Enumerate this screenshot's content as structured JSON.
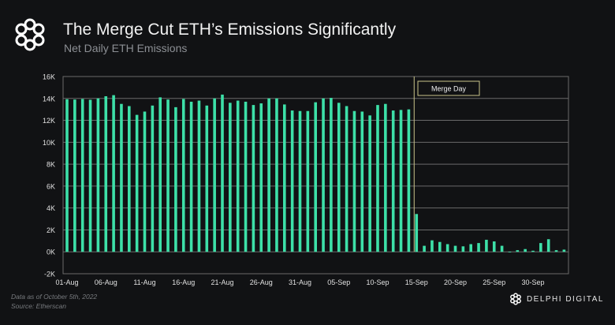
{
  "header": {
    "title": "The Merge Cut ETH’s Emissions Significantly",
    "subtitle": "Net Daily ETH Emissions"
  },
  "footer": {
    "note": "Data as of October 5th, 2022",
    "source": "Source: Etherscan",
    "brand": "DELPHI DIGITAL"
  },
  "colors": {
    "bar": "#3de0a8",
    "grid": "#6a6a6a",
    "annotation": "#c9c48a"
  },
  "chart_data": {
    "type": "bar",
    "title": "Net Daily ETH Emissions",
    "xlabel": "",
    "ylabel": "",
    "ylim": [
      -2000,
      16000
    ],
    "yticks": [
      -2000,
      0,
      2000,
      4000,
      6000,
      8000,
      10000,
      12000,
      14000,
      16000
    ],
    "ytick_labels": [
      "-2K",
      "0K",
      "2K",
      "4K",
      "6K",
      "8K",
      "10K",
      "12K",
      "14K",
      "16K"
    ],
    "xtick_labels": [
      "01-Aug",
      "06-Aug",
      "11-Aug",
      "16-Aug",
      "21-Aug",
      "26-Aug",
      "31-Aug",
      "05-Sep",
      "10-Sep",
      "15-Sep",
      "20-Sep",
      "25-Sep",
      "30-Sep"
    ],
    "xtick_every": 5,
    "start_date": "01-Aug-2022",
    "annotation": {
      "label": "Merge Day",
      "day_index": 45
    },
    "grid": true,
    "values": [
      13930,
      13900,
      13950,
      13880,
      14000,
      14200,
      14300,
      13500,
      13300,
      12500,
      12800,
      13350,
      14100,
      13900,
      13200,
      13950,
      13700,
      13800,
      13350,
      14000,
      14350,
      13600,
      13800,
      13700,
      13400,
      13550,
      14000,
      14000,
      13450,
      12900,
      12850,
      12850,
      13650,
      14000,
      14050,
      13600,
      13300,
      12850,
      12800,
      12450,
      13400,
      13500,
      12900,
      12950,
      13000,
      3450,
      550,
      1050,
      900,
      700,
      550,
      500,
      700,
      800,
      1100,
      950,
      550,
      -30,
      150,
      250,
      100,
      800,
      1150,
      150,
      200
    ]
  }
}
